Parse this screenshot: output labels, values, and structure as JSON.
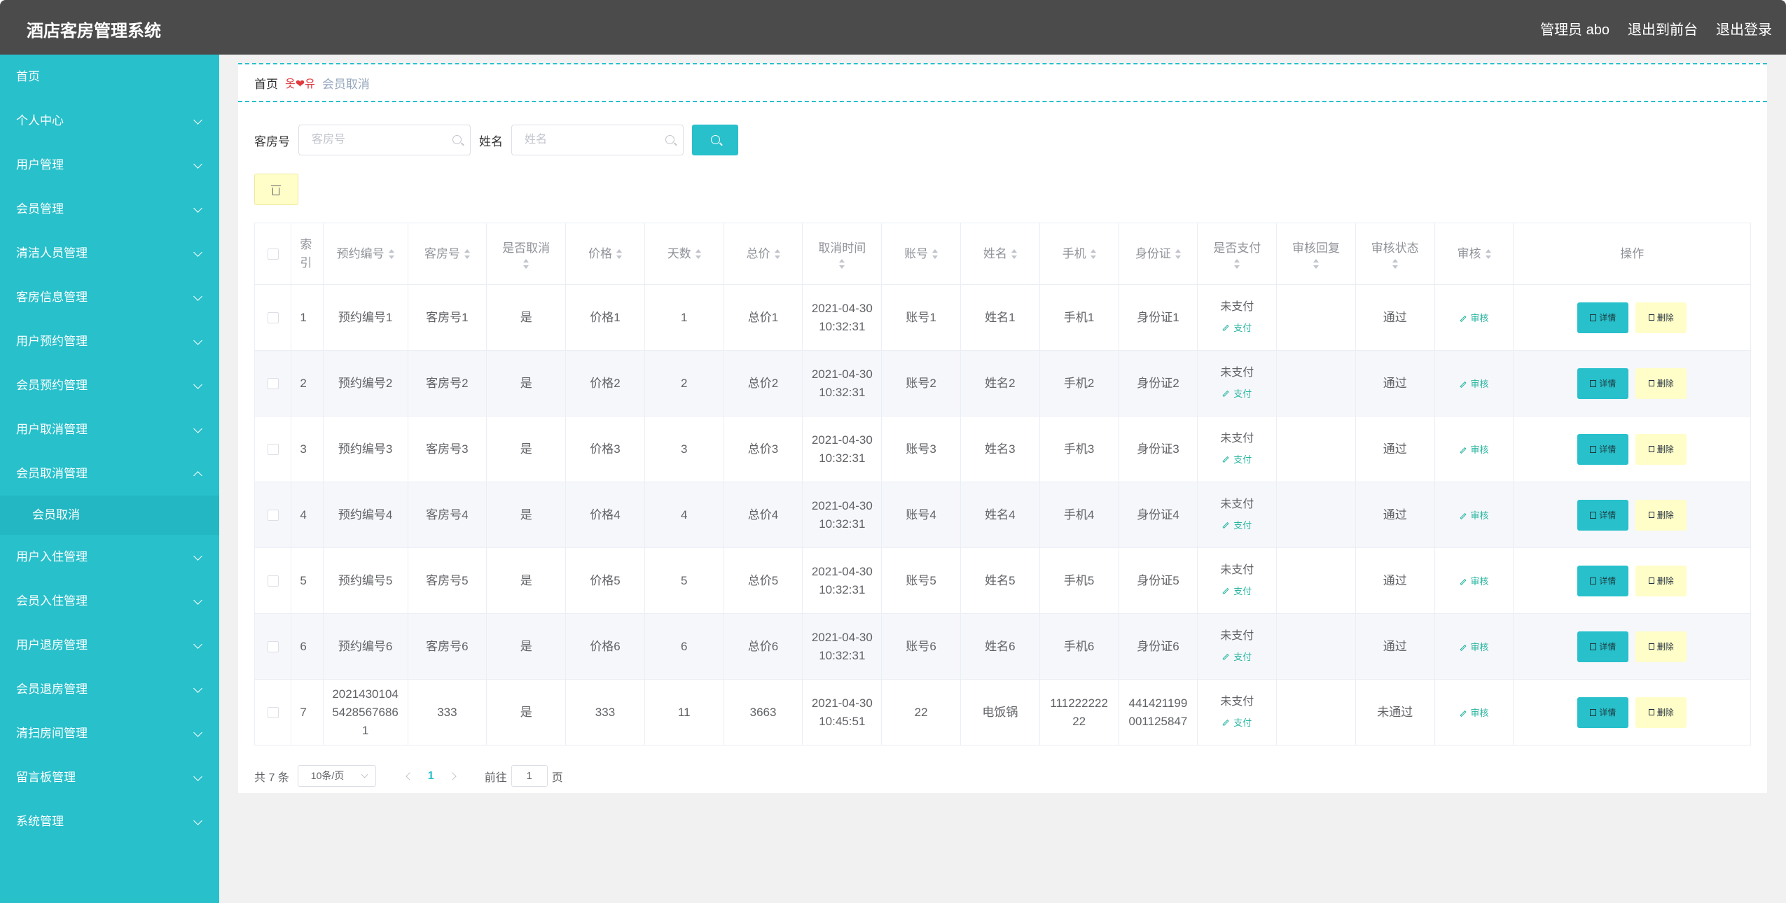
{
  "app": {
    "title": "酒店客房管理系统",
    "top_links": [
      "管理员 abo",
      "退出到前台",
      "退出登录"
    ]
  },
  "sidebar": {
    "items": [
      {
        "label": "首页",
        "expandable": false
      },
      {
        "label": "个人中心",
        "expandable": true
      },
      {
        "label": "用户管理",
        "expandable": true
      },
      {
        "label": "会员管理",
        "expandable": true
      },
      {
        "label": "清洁人员管理",
        "expandable": true
      },
      {
        "label": "客房信息管理",
        "expandable": true
      },
      {
        "label": "用户预约管理",
        "expandable": true
      },
      {
        "label": "会员预约管理",
        "expandable": true
      },
      {
        "label": "用户取消管理",
        "expandable": true
      },
      {
        "label": "会员取消管理",
        "expandable": true,
        "expanded": true
      },
      {
        "label": "用户入住管理",
        "expandable": true
      },
      {
        "label": "会员入住管理",
        "expandable": true
      },
      {
        "label": "用户退房管理",
        "expandable": true
      },
      {
        "label": "会员退房管理",
        "expandable": true
      },
      {
        "label": "清扫房间管理",
        "expandable": true
      },
      {
        "label": "留言板管理",
        "expandable": true
      },
      {
        "label": "系统管理",
        "expandable": true
      }
    ],
    "sub_item": "会员取消"
  },
  "breadcrumb": {
    "home": "首页",
    "separator": "옷❤유",
    "current": "会员取消"
  },
  "search": {
    "room_label": "客房号",
    "room_placeholder": "客房号",
    "name_label": "姓名",
    "name_placeholder": "姓名"
  },
  "table": {
    "columns": [
      "索引",
      "预约编号",
      "客房号",
      "是否取消",
      "价格",
      "天数",
      "总价",
      "取消时间",
      "账号",
      "姓名",
      "手机",
      "身份证",
      "是否支付",
      "审核回复",
      "审核状态",
      "审核",
      "操作"
    ],
    "pay_link": "支付",
    "review_link": "审核",
    "detail_btn": "详情",
    "delete_btn": "删除",
    "rows": [
      {
        "index": "1",
        "booking_no": "预约编号1",
        "room": "客房号1",
        "cancelled": "是",
        "price": "价格1",
        "days": "1",
        "total": "总价1",
        "cancel_date": "2021-04-30",
        "cancel_time": "10:32:31",
        "account": "账号1",
        "name": "姓名1",
        "phone": "手机1",
        "id_card": "身份证1",
        "paid": "未支付",
        "reply": "",
        "status": "通过"
      },
      {
        "index": "2",
        "booking_no": "预约编号2",
        "room": "客房号2",
        "cancelled": "是",
        "price": "价格2",
        "days": "2",
        "total": "总价2",
        "cancel_date": "2021-04-30",
        "cancel_time": "10:32:31",
        "account": "账号2",
        "name": "姓名2",
        "phone": "手机2",
        "id_card": "身份证2",
        "paid": "未支付",
        "reply": "",
        "status": "通过"
      },
      {
        "index": "3",
        "booking_no": "预约编号3",
        "room": "客房号3",
        "cancelled": "是",
        "price": "价格3",
        "days": "3",
        "total": "总价3",
        "cancel_date": "2021-04-30",
        "cancel_time": "10:32:31",
        "account": "账号3",
        "name": "姓名3",
        "phone": "手机3",
        "id_card": "身份证3",
        "paid": "未支付",
        "reply": "",
        "status": "通过"
      },
      {
        "index": "4",
        "booking_no": "预约编号4",
        "room": "客房号4",
        "cancelled": "是",
        "price": "价格4",
        "days": "4",
        "total": "总价4",
        "cancel_date": "2021-04-30",
        "cancel_time": "10:32:31",
        "account": "账号4",
        "name": "姓名4",
        "phone": "手机4",
        "id_card": "身份证4",
        "paid": "未支付",
        "reply": "",
        "status": "通过"
      },
      {
        "index": "5",
        "booking_no": "预约编号5",
        "room": "客房号5",
        "cancelled": "是",
        "price": "价格5",
        "days": "5",
        "total": "总价5",
        "cancel_date": "2021-04-30",
        "cancel_time": "10:32:31",
        "account": "账号5",
        "name": "姓名5",
        "phone": "手机5",
        "id_card": "身份证5",
        "paid": "未支付",
        "reply": "",
        "status": "通过"
      },
      {
        "index": "6",
        "booking_no": "预约编号6",
        "room": "客房号6",
        "cancelled": "是",
        "price": "价格6",
        "days": "6",
        "total": "总价6",
        "cancel_date": "2021-04-30",
        "cancel_time": "10:32:31",
        "account": "账号6",
        "name": "姓名6",
        "phone": "手机6",
        "id_card": "身份证6",
        "paid": "未支付",
        "reply": "",
        "status": "通过"
      },
      {
        "index": "7",
        "booking_no": "20214301045428567686 1",
        "booking_no_lines": [
          "2021430104",
          "5428567686",
          "1"
        ],
        "room": "333",
        "cancelled": "是",
        "price": "333",
        "days": "11",
        "total": "3663",
        "cancel_date": "2021-04-30",
        "cancel_time": "10:45:51",
        "account": "22",
        "name": "电饭锅",
        "phone": "111222222 22",
        "phone_lines": [
          "111222222",
          "22"
        ],
        "id_card": "441421199 001125847",
        "id_card_lines": [
          "441421199",
          "001125847"
        ],
        "paid": "未支付",
        "reply": "",
        "status": "未通过"
      }
    ]
  },
  "pagination": {
    "total": "共 7 条",
    "page_size": "10条/页",
    "current": "1",
    "goto_label": "前往",
    "goto_value": "1",
    "page_suffix": "页"
  },
  "colors": {
    "accent": "#27c0cb",
    "header": "#4b4b4b",
    "delete_bg": "#fffdc8",
    "link": "#27b5a0"
  }
}
